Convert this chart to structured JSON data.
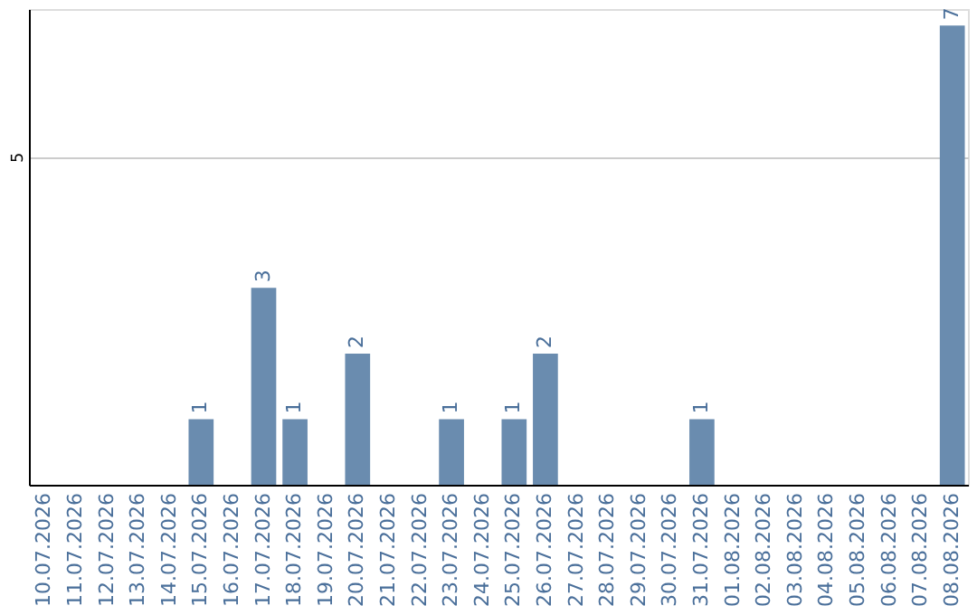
{
  "chart_data": {
    "type": "bar",
    "categories": [
      "10.07.2026",
      "11.07.2026",
      "12.07.2026",
      "13.07.2026",
      "14.07.2026",
      "15.07.2026",
      "16.07.2026",
      "17.07.2026",
      "18.07.2026",
      "19.07.2026",
      "20.07.2026",
      "21.07.2026",
      "22.07.2026",
      "23.07.2026",
      "24.07.2026",
      "25.07.2026",
      "26.07.2026",
      "27.07.2026",
      "28.07.2026",
      "29.07.2026",
      "30.07.2026",
      "31.07.2026",
      "01.08.2026",
      "02.08.2026",
      "03.08.2026",
      "04.08.2026",
      "05.08.2026",
      "06.08.2026",
      "07.08.2026",
      "08.08.2026"
    ],
    "values": [
      0,
      0,
      0,
      0,
      0,
      1,
      0,
      3,
      1,
      0,
      2,
      0,
      0,
      1,
      0,
      1,
      2,
      0,
      0,
      0,
      0,
      1,
      0,
      0,
      0,
      0,
      0,
      0,
      0,
      7
    ],
    "value_labels": [
      null,
      null,
      null,
      null,
      null,
      "1",
      null,
      "3",
      "1",
      null,
      "2",
      null,
      null,
      "1",
      null,
      "1",
      "2",
      null,
      null,
      null,
      null,
      "1",
      null,
      null,
      null,
      null,
      null,
      null,
      null,
      "7"
    ],
    "color": "#6a8caf",
    "ylim": [
      0,
      7.25
    ],
    "yticks": [
      5
    ],
    "grid": "y"
  }
}
